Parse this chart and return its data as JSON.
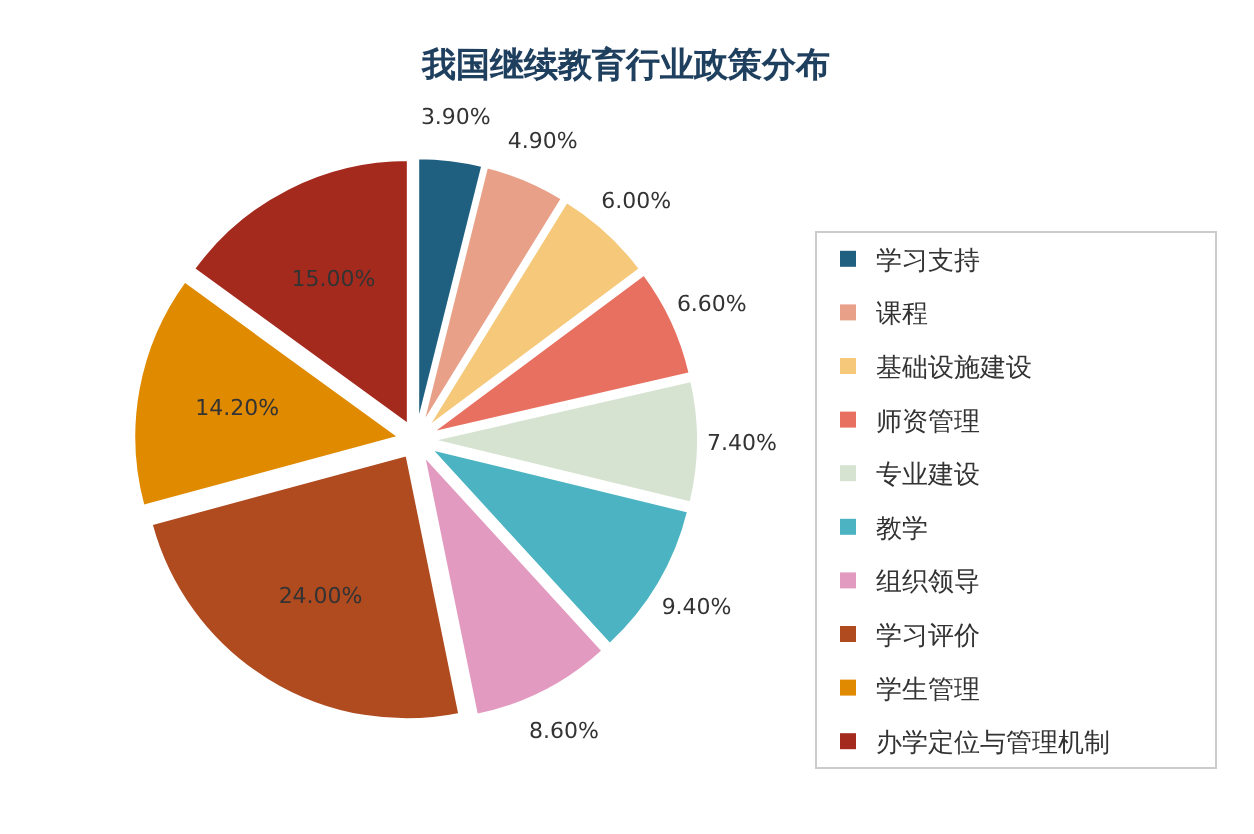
{
  "chart_data": {
    "type": "pie",
    "title": "我国继续教育行业政策分布",
    "categories": [
      "学习支持",
      "课程",
      "基础设施建设",
      "师资管理",
      "专业建设",
      "教学",
      "组织领导",
      "学习评价",
      "学生管理",
      "办学定位与管理机制"
    ],
    "values": [
      3.9,
      4.9,
      6.0,
      6.6,
      7.4,
      9.4,
      8.6,
      24.0,
      14.2,
      15.0
    ],
    "value_labels": [
      "3.90%",
      "4.90%",
      "6.00%",
      "6.60%",
      "7.40%",
      "9.40%",
      "8.60%",
      "24.00%",
      "14.20%",
      "15.00%"
    ],
    "colors": [
      "#1f5f7f",
      "#e8a088",
      "#f5c87a",
      "#e87060",
      "#d5e3d0",
      "#4bb3c1",
      "#e39ac0",
      "#b04a1f",
      "#e08a00",
      "#a52a1e"
    ],
    "legend": "right"
  }
}
